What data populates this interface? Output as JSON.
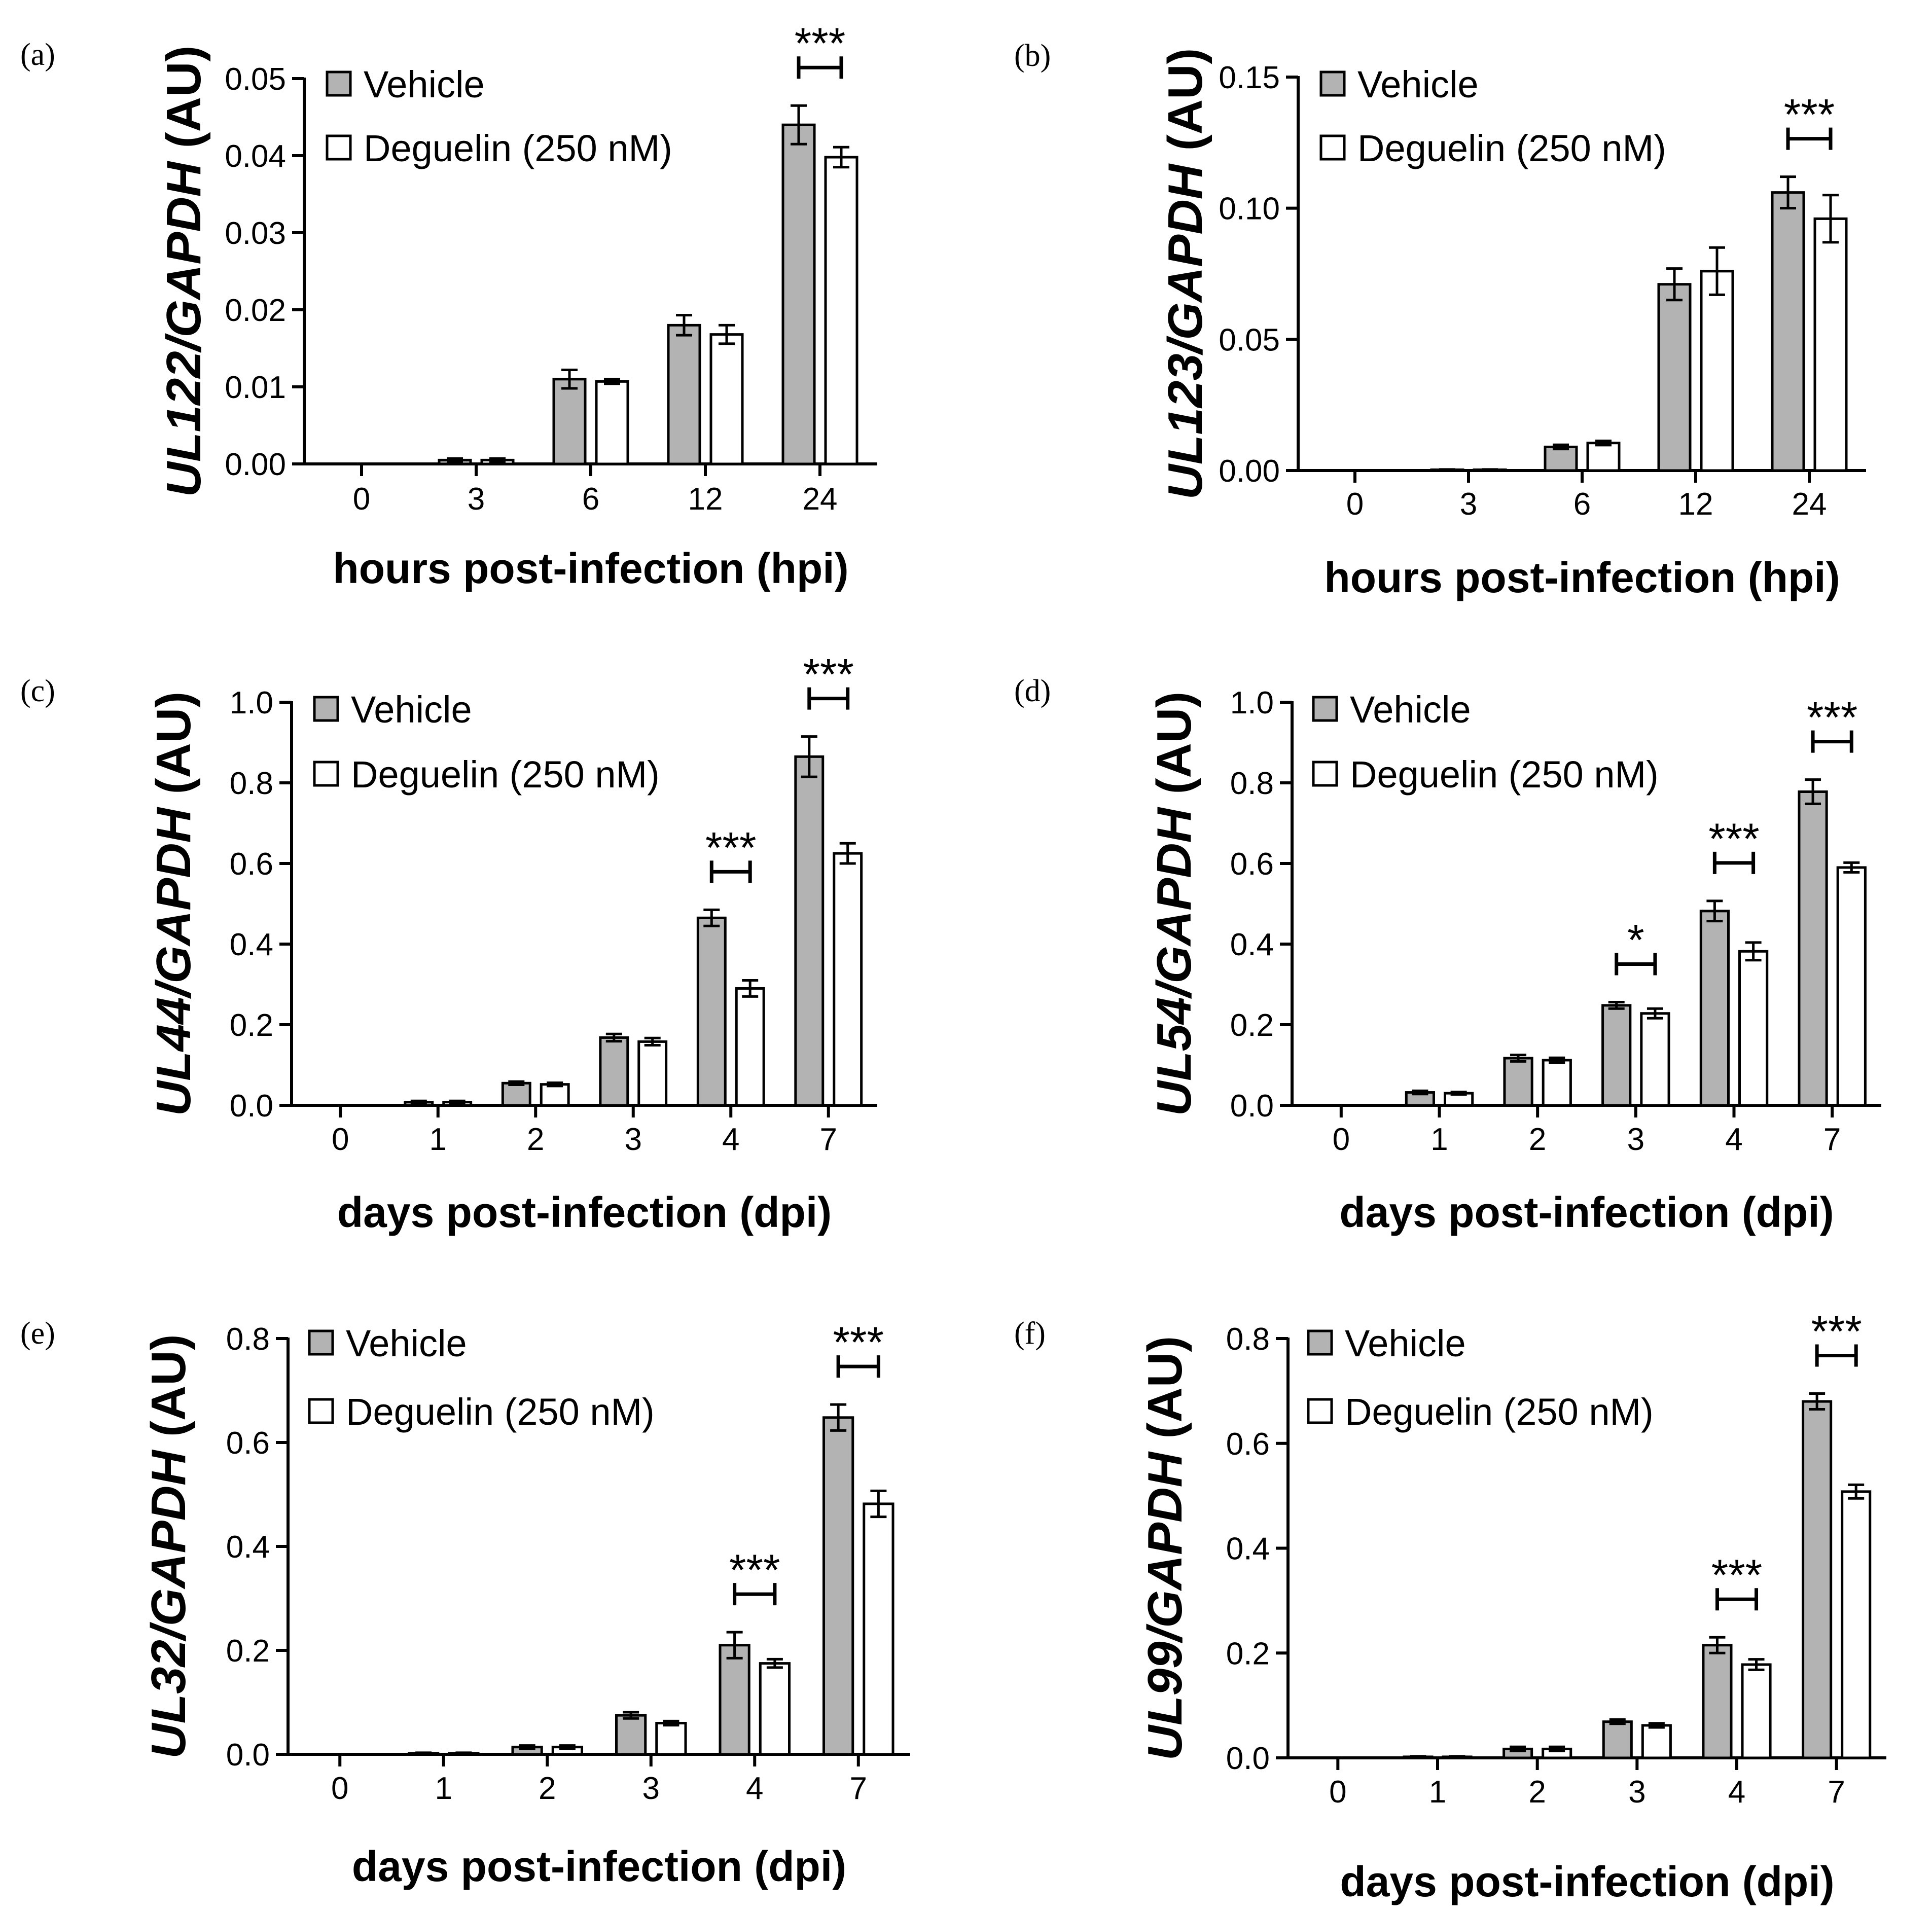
{
  "figure": {
    "colors": {
      "vehicle": "#b3b3b3",
      "deguelin": "#ffffff",
      "stroke": "#000000"
    },
    "legend": {
      "vehicle": "Vehicle",
      "deguelin": "Deguelin (250 nM)"
    }
  },
  "chart_data": [
    {
      "type": "bar",
      "panel": "(a)",
      "ylabel_gene": "UL122/GAPDH",
      "ylabel_unit": "(AU)",
      "xlabel": "hours post-infection (hpi)",
      "categories": [
        "0",
        "3",
        "6",
        "12",
        "24"
      ],
      "ylim": [
        0,
        0.05
      ],
      "yticks": [
        "0.00",
        "0.01",
        "0.02",
        "0.03",
        "0.04",
        "0.05"
      ],
      "series": [
        {
          "name": "Vehicle",
          "values": [
            0,
            0.0005,
            0.011,
            0.018,
            0.044
          ],
          "errors": [
            0,
            0.0002,
            0.0012,
            0.0013,
            0.0025
          ]
        },
        {
          "name": "Deguelin (250 nM)",
          "values": [
            0,
            0.0005,
            0.0107,
            0.0168,
            0.0398
          ],
          "errors": [
            0,
            0.0002,
            0.0003,
            0.0012,
            0.0013
          ]
        }
      ],
      "significance": [
        {
          "category": "24",
          "label": "***"
        }
      ]
    },
    {
      "type": "bar",
      "panel": "(b)",
      "ylabel_gene": "UL123/GAPDH",
      "ylabel_unit": "(AU)",
      "xlabel": "hours post-infection (hpi)",
      "categories": [
        "0",
        "3",
        "6",
        "12",
        "24"
      ],
      "ylim": [
        0,
        0.15
      ],
      "yticks": [
        "0.00",
        "0.05",
        "0.10",
        "0.15"
      ],
      "series": [
        {
          "name": "Vehicle",
          "values": [
            0,
            0.0003,
            0.009,
            0.071,
            0.106
          ],
          "errors": [
            0,
            0.0001,
            0.0008,
            0.006,
            0.006
          ]
        },
        {
          "name": "Deguelin (250 nM)",
          "values": [
            0,
            0.0003,
            0.0105,
            0.076,
            0.096
          ],
          "errors": [
            0,
            0.0001,
            0.0008,
            0.009,
            0.009
          ]
        }
      ],
      "significance": [
        {
          "category": "24",
          "label": "***"
        }
      ]
    },
    {
      "type": "bar",
      "panel": "(c)",
      "ylabel_gene": "UL44/GAPDH",
      "ylabel_unit": "(AU)",
      "xlabel": "days post-infection (dpi)",
      "categories": [
        "0",
        "1",
        "2",
        "3",
        "4",
        "7"
      ],
      "ylim": [
        0,
        1.0
      ],
      "yticks": [
        "0.0",
        "0.2",
        "0.4",
        "0.6",
        "0.8",
        "1.0"
      ],
      "series": [
        {
          "name": "Vehicle",
          "values": [
            0,
            0.008,
            0.055,
            0.168,
            0.465,
            0.865
          ],
          "errors": [
            0,
            0.003,
            0.004,
            0.009,
            0.02,
            0.05
          ]
        },
        {
          "name": "Deguelin (250 nM)",
          "values": [
            0,
            0.008,
            0.052,
            0.158,
            0.29,
            0.625
          ],
          "errors": [
            0,
            0.003,
            0.004,
            0.009,
            0.02,
            0.025
          ]
        }
      ],
      "significance": [
        {
          "category": "4",
          "label": "***"
        },
        {
          "category": "7",
          "label": "***"
        }
      ]
    },
    {
      "type": "bar",
      "panel": "(d)",
      "ylabel_gene": "UL54/GAPDH",
      "ylabel_unit": "(AU)",
      "xlabel": "days post-infection (dpi)",
      "categories": [
        "0",
        "1",
        "2",
        "3",
        "4",
        "7"
      ],
      "ylim": [
        0,
        1.0
      ],
      "yticks": [
        "0.0",
        "0.2",
        "0.4",
        "0.6",
        "0.8",
        "1.0"
      ],
      "series": [
        {
          "name": "Vehicle",
          "values": [
            0,
            0.032,
            0.117,
            0.248,
            0.482,
            0.778
          ],
          "errors": [
            0,
            0.004,
            0.008,
            0.008,
            0.025,
            0.03
          ]
        },
        {
          "name": "Deguelin (250 nM)",
          "values": [
            0,
            0.03,
            0.112,
            0.228,
            0.382,
            0.59
          ],
          "errors": [
            0,
            0.003,
            0.006,
            0.012,
            0.022,
            0.012
          ]
        }
      ],
      "significance": [
        {
          "category": "3",
          "label": "*"
        },
        {
          "category": "4",
          "label": "***"
        },
        {
          "category": "7",
          "label": "***"
        }
      ]
    },
    {
      "type": "bar",
      "panel": "(e)",
      "ylabel_gene": "UL32/GAPDH",
      "ylabel_unit": "(AU)",
      "xlabel": "days post-infection (dpi)",
      "categories": [
        "0",
        "1",
        "2",
        "3",
        "4",
        "7"
      ],
      "ylim": [
        0,
        0.8
      ],
      "yticks": [
        "0.0",
        "0.2",
        "0.4",
        "0.6",
        "0.8"
      ],
      "series": [
        {
          "name": "Vehicle",
          "values": [
            0,
            0.002,
            0.014,
            0.075,
            0.21,
            0.648
          ],
          "errors": [
            0,
            0.001,
            0.003,
            0.006,
            0.025,
            0.025
          ]
        },
        {
          "name": "Deguelin (250 nM)",
          "values": [
            0,
            0.002,
            0.014,
            0.06,
            0.175,
            0.482
          ],
          "errors": [
            0,
            0.001,
            0.003,
            0.004,
            0.008,
            0.025
          ]
        }
      ],
      "significance": [
        {
          "category": "4",
          "label": "***"
        },
        {
          "category": "7",
          "label": "***"
        }
      ]
    },
    {
      "type": "bar",
      "panel": "(f)",
      "ylabel_gene": "UL99/GAPDH",
      "ylabel_unit": "(AU)",
      "xlabel": "days post-infection (dpi)",
      "categories": [
        "0",
        "1",
        "2",
        "3",
        "4",
        "7"
      ],
      "ylim": [
        0,
        0.8
      ],
      "yticks": [
        "0.0",
        "0.2",
        "0.4",
        "0.6",
        "0.8"
      ],
      "series": [
        {
          "name": "Vehicle",
          "values": [
            0,
            0.002,
            0.017,
            0.069,
            0.215,
            0.68
          ],
          "errors": [
            0,
            0.001,
            0.004,
            0.004,
            0.015,
            0.015
          ]
        },
        {
          "name": "Deguelin (250 nM)",
          "values": [
            0,
            0.002,
            0.017,
            0.062,
            0.178,
            0.508
          ],
          "errors": [
            0,
            0.001,
            0.004,
            0.004,
            0.01,
            0.013
          ]
        }
      ],
      "significance": [
        {
          "category": "4",
          "label": "***"
        },
        {
          "category": "7",
          "label": "***"
        }
      ]
    }
  ]
}
